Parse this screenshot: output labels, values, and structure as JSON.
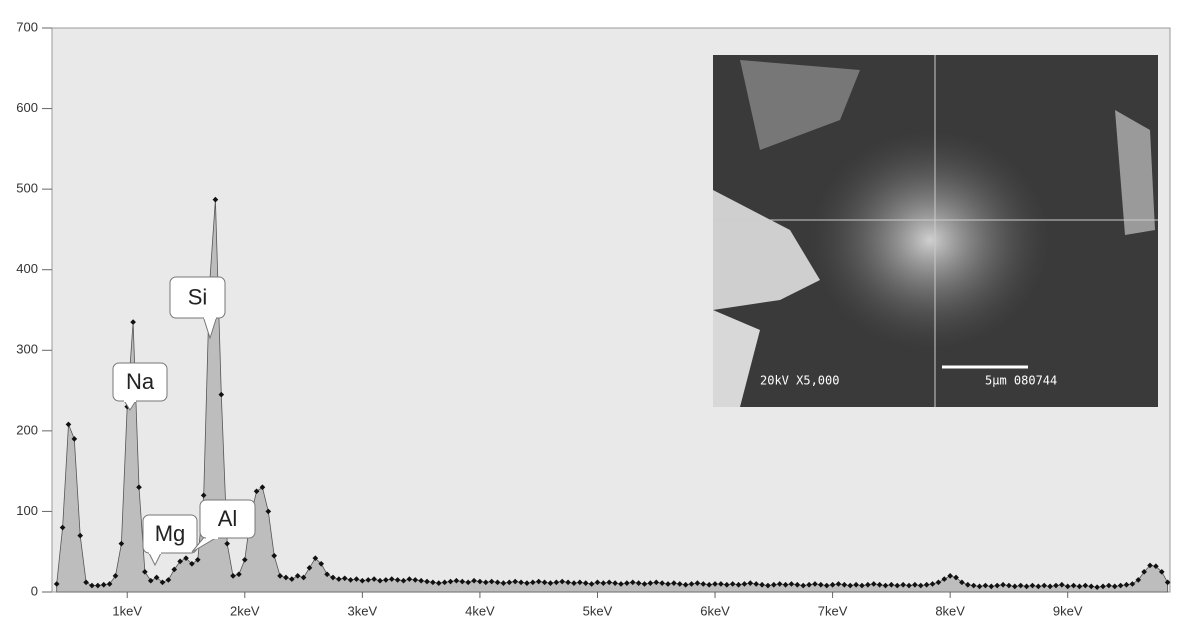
{
  "chart_data": {
    "type": "area",
    "annotations": [
      "Na",
      "Mg",
      "Al",
      "Si"
    ],
    "inset_text": [
      "20kV X5,000",
      "5µm 080744"
    ],
    "x": [
      0.4,
      0.45,
      0.5,
      0.55,
      0.6,
      0.65,
      0.7,
      0.75,
      0.8,
      0.85,
      0.9,
      0.95,
      1.0,
      1.05,
      1.1,
      1.15,
      1.2,
      1.25,
      1.3,
      1.35,
      1.4,
      1.45,
      1.5,
      1.55,
      1.6,
      1.65,
      1.7,
      1.75,
      1.8,
      1.85,
      1.9,
      1.95,
      2.0,
      2.05,
      2.1,
      2.15,
      2.2,
      2.25,
      2.3,
      2.35,
      2.4,
      2.45,
      2.5,
      2.55,
      2.6,
      2.65,
      2.7,
      2.75,
      2.8,
      2.85,
      2.9,
      2.95,
      3.0,
      3.05,
      3.1,
      3.15,
      3.2,
      3.25,
      3.3,
      3.35,
      3.4,
      3.45,
      3.5,
      3.55,
      3.6,
      3.65,
      3.7,
      3.75,
      3.8,
      3.85,
      3.9,
      3.95,
      4.0,
      4.05,
      4.1,
      4.15,
      4.2,
      4.25,
      4.3,
      4.35,
      4.4,
      4.45,
      4.5,
      4.55,
      4.6,
      4.65,
      4.7,
      4.75,
      4.8,
      4.85,
      4.9,
      4.95,
      5.0,
      5.05,
      5.1,
      5.15,
      5.2,
      5.25,
      5.3,
      5.35,
      5.4,
      5.45,
      5.5,
      5.55,
      5.6,
      5.65,
      5.7,
      5.75,
      5.8,
      5.85,
      5.9,
      5.95,
      6.0,
      6.05,
      6.1,
      6.15,
      6.2,
      6.25,
      6.3,
      6.35,
      6.4,
      6.45,
      6.5,
      6.55,
      6.6,
      6.65,
      6.7,
      6.75,
      6.8,
      6.85,
      6.9,
      6.95,
      7.0,
      7.05,
      7.1,
      7.15,
      7.2,
      7.25,
      7.3,
      7.35,
      7.4,
      7.45,
      7.5,
      7.55,
      7.6,
      7.65,
      7.7,
      7.75,
      7.8,
      7.85,
      7.9,
      7.95,
      8.0,
      8.05,
      8.1,
      8.15,
      8.2,
      8.25,
      8.3,
      8.35,
      8.4,
      8.45,
      8.5,
      8.55,
      8.6,
      8.65,
      8.7,
      8.75,
      8.8,
      8.85,
      8.9,
      8.95,
      9.0,
      9.05,
      9.1,
      9.15,
      9.2,
      9.25,
      9.3,
      9.35,
      9.4,
      9.45,
      9.5,
      9.55,
      9.6,
      9.65,
      9.7,
      9.75,
      9.8,
      9.85
    ],
    "values": [
      10,
      80,
      208,
      190,
      70,
      12,
      8,
      8,
      9,
      10,
      20,
      60,
      230,
      335,
      130,
      25,
      14,
      18,
      12,
      15,
      28,
      38,
      42,
      35,
      40,
      120,
      380,
      487,
      245,
      60,
      20,
      22,
      40,
      95,
      125,
      130,
      100,
      45,
      20,
      18,
      16,
      20,
      18,
      30,
      42,
      35,
      22,
      18,
      16,
      17,
      15,
      16,
      14,
      15,
      16,
      14,
      15,
      16,
      15,
      14,
      16,
      15,
      14,
      13,
      12,
      11,
      12,
      13,
      14,
      13,
      12,
      14,
      13,
      12,
      13,
      12,
      11,
      12,
      13,
      12,
      11,
      12,
      13,
      12,
      11,
      12,
      13,
      12,
      11,
      12,
      11,
      10,
      12,
      11,
      12,
      11,
      10,
      11,
      12,
      11,
      10,
      11,
      12,
      11,
      10,
      11,
      10,
      9,
      10,
      11,
      10,
      9,
      10,
      10,
      9,
      10,
      9,
      10,
      11,
      10,
      9,
      8,
      9,
      10,
      9,
      10,
      9,
      8,
      9,
      10,
      9,
      8,
      9,
      10,
      9,
      8,
      9,
      8,
      9,
      10,
      9,
      8,
      9,
      8,
      9,
      8,
      9,
      8,
      9,
      10,
      12,
      16,
      20,
      18,
      12,
      9,
      8,
      7,
      8,
      7,
      8,
      9,
      8,
      7,
      8,
      7,
      8,
      7,
      8,
      7,
      8,
      9,
      7,
      8,
      7,
      8,
      7,
      6,
      7,
      8,
      7,
      8,
      9,
      10,
      15,
      25,
      33,
      32,
      25,
      12
    ],
    "color": "#bdbdbd",
    "xlim": [
      0.36,
      9.87
    ],
    "ylim": [
      0,
      700
    ],
    "xticks": [
      {
        "value": 1,
        "label": "1keV"
      },
      {
        "value": 2,
        "label": "2keV"
      },
      {
        "value": 3,
        "label": "3keV"
      },
      {
        "value": 4,
        "label": "4keV"
      },
      {
        "value": 5,
        "label": "5keV"
      },
      {
        "value": 6,
        "label": "6keV"
      },
      {
        "value": 7,
        "label": "7keV"
      },
      {
        "value": 8,
        "label": "8keV"
      },
      {
        "value": 9,
        "label": "9keV"
      }
    ],
    "yticks": [
      0,
      100,
      200,
      300,
      400,
      500,
      600,
      700
    ]
  }
}
